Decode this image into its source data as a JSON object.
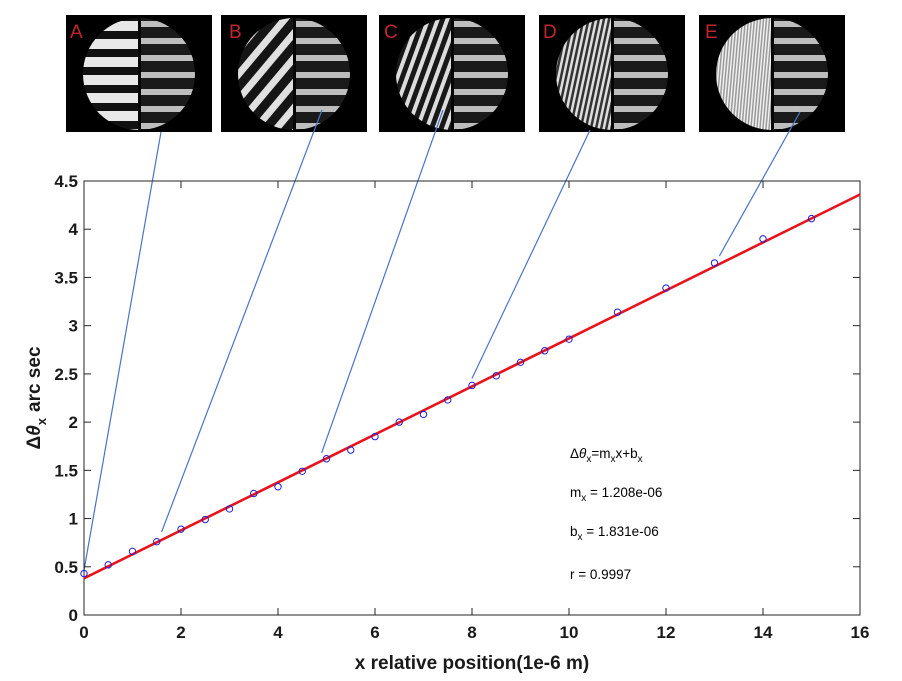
{
  "panels": [
    {
      "label": "A",
      "x": 0.0
    },
    {
      "label": "B",
      "x": 1.6
    },
    {
      "label": "C",
      "x": 4.9
    },
    {
      "label": "D",
      "x": 8.0
    },
    {
      "label": "E",
      "x": 13.1
    }
  ],
  "chart_data": {
    "type": "scatter",
    "title": "",
    "xlabel": "x relative position(1e-6 m)",
    "ylabel_prefix": "Δ",
    "ylabel_symbol": "θ",
    "ylabel_sub": "x",
    "ylabel_suffix": "arc sec",
    "xlim": [
      0,
      16
    ],
    "ylim": [
      0,
      4.5
    ],
    "xticks": [
      0,
      2,
      4,
      6,
      8,
      10,
      12,
      14,
      16
    ],
    "yticks": [
      0,
      0.5,
      1,
      1.5,
      2,
      2.5,
      3,
      3.5,
      4,
      4.5
    ],
    "grid": false,
    "series": [
      {
        "kind": "points",
        "color": "#1f1fd6",
        "x": [
          0,
          0.5,
          1,
          1.5,
          2,
          2.5,
          3,
          3.5,
          4,
          4.5,
          5,
          5.5,
          6,
          6.5,
          7,
          7.5,
          8,
          8.5,
          9,
          9.5,
          10,
          11,
          12,
          13,
          14,
          15
        ],
        "y": [
          0.43,
          0.52,
          0.66,
          0.76,
          0.89,
          0.99,
          1.1,
          1.26,
          1.33,
          1.49,
          1.62,
          1.71,
          1.85,
          2.0,
          2.08,
          2.23,
          2.38,
          2.48,
          2.62,
          2.74,
          2.86,
          3.14,
          3.39,
          3.65,
          3.9,
          4.11
        ]
      },
      {
        "kind": "fit-line",
        "color": "#e8141b",
        "x": [
          0,
          16
        ],
        "y": [
          0.38,
          4.36
        ]
      }
    ],
    "annotations": {
      "equation": {
        "lhs_prefix": "Δ",
        "lhs_symbol": "θ",
        "lhs_sub": "x",
        "eq": "=m",
        "m_sub": "x",
        "mid": "x+b",
        "b_sub": "x"
      },
      "m": {
        "name": "m",
        "sub": "x",
        "value": " = 1.208e-06"
      },
      "b": {
        "name": "b",
        "sub": "x",
        "value": " = 1.831e-06"
      },
      "r": {
        "text": "r  =  0.9997"
      }
    },
    "connector_color": "#4a74c4",
    "axis_color": "#262626"
  }
}
